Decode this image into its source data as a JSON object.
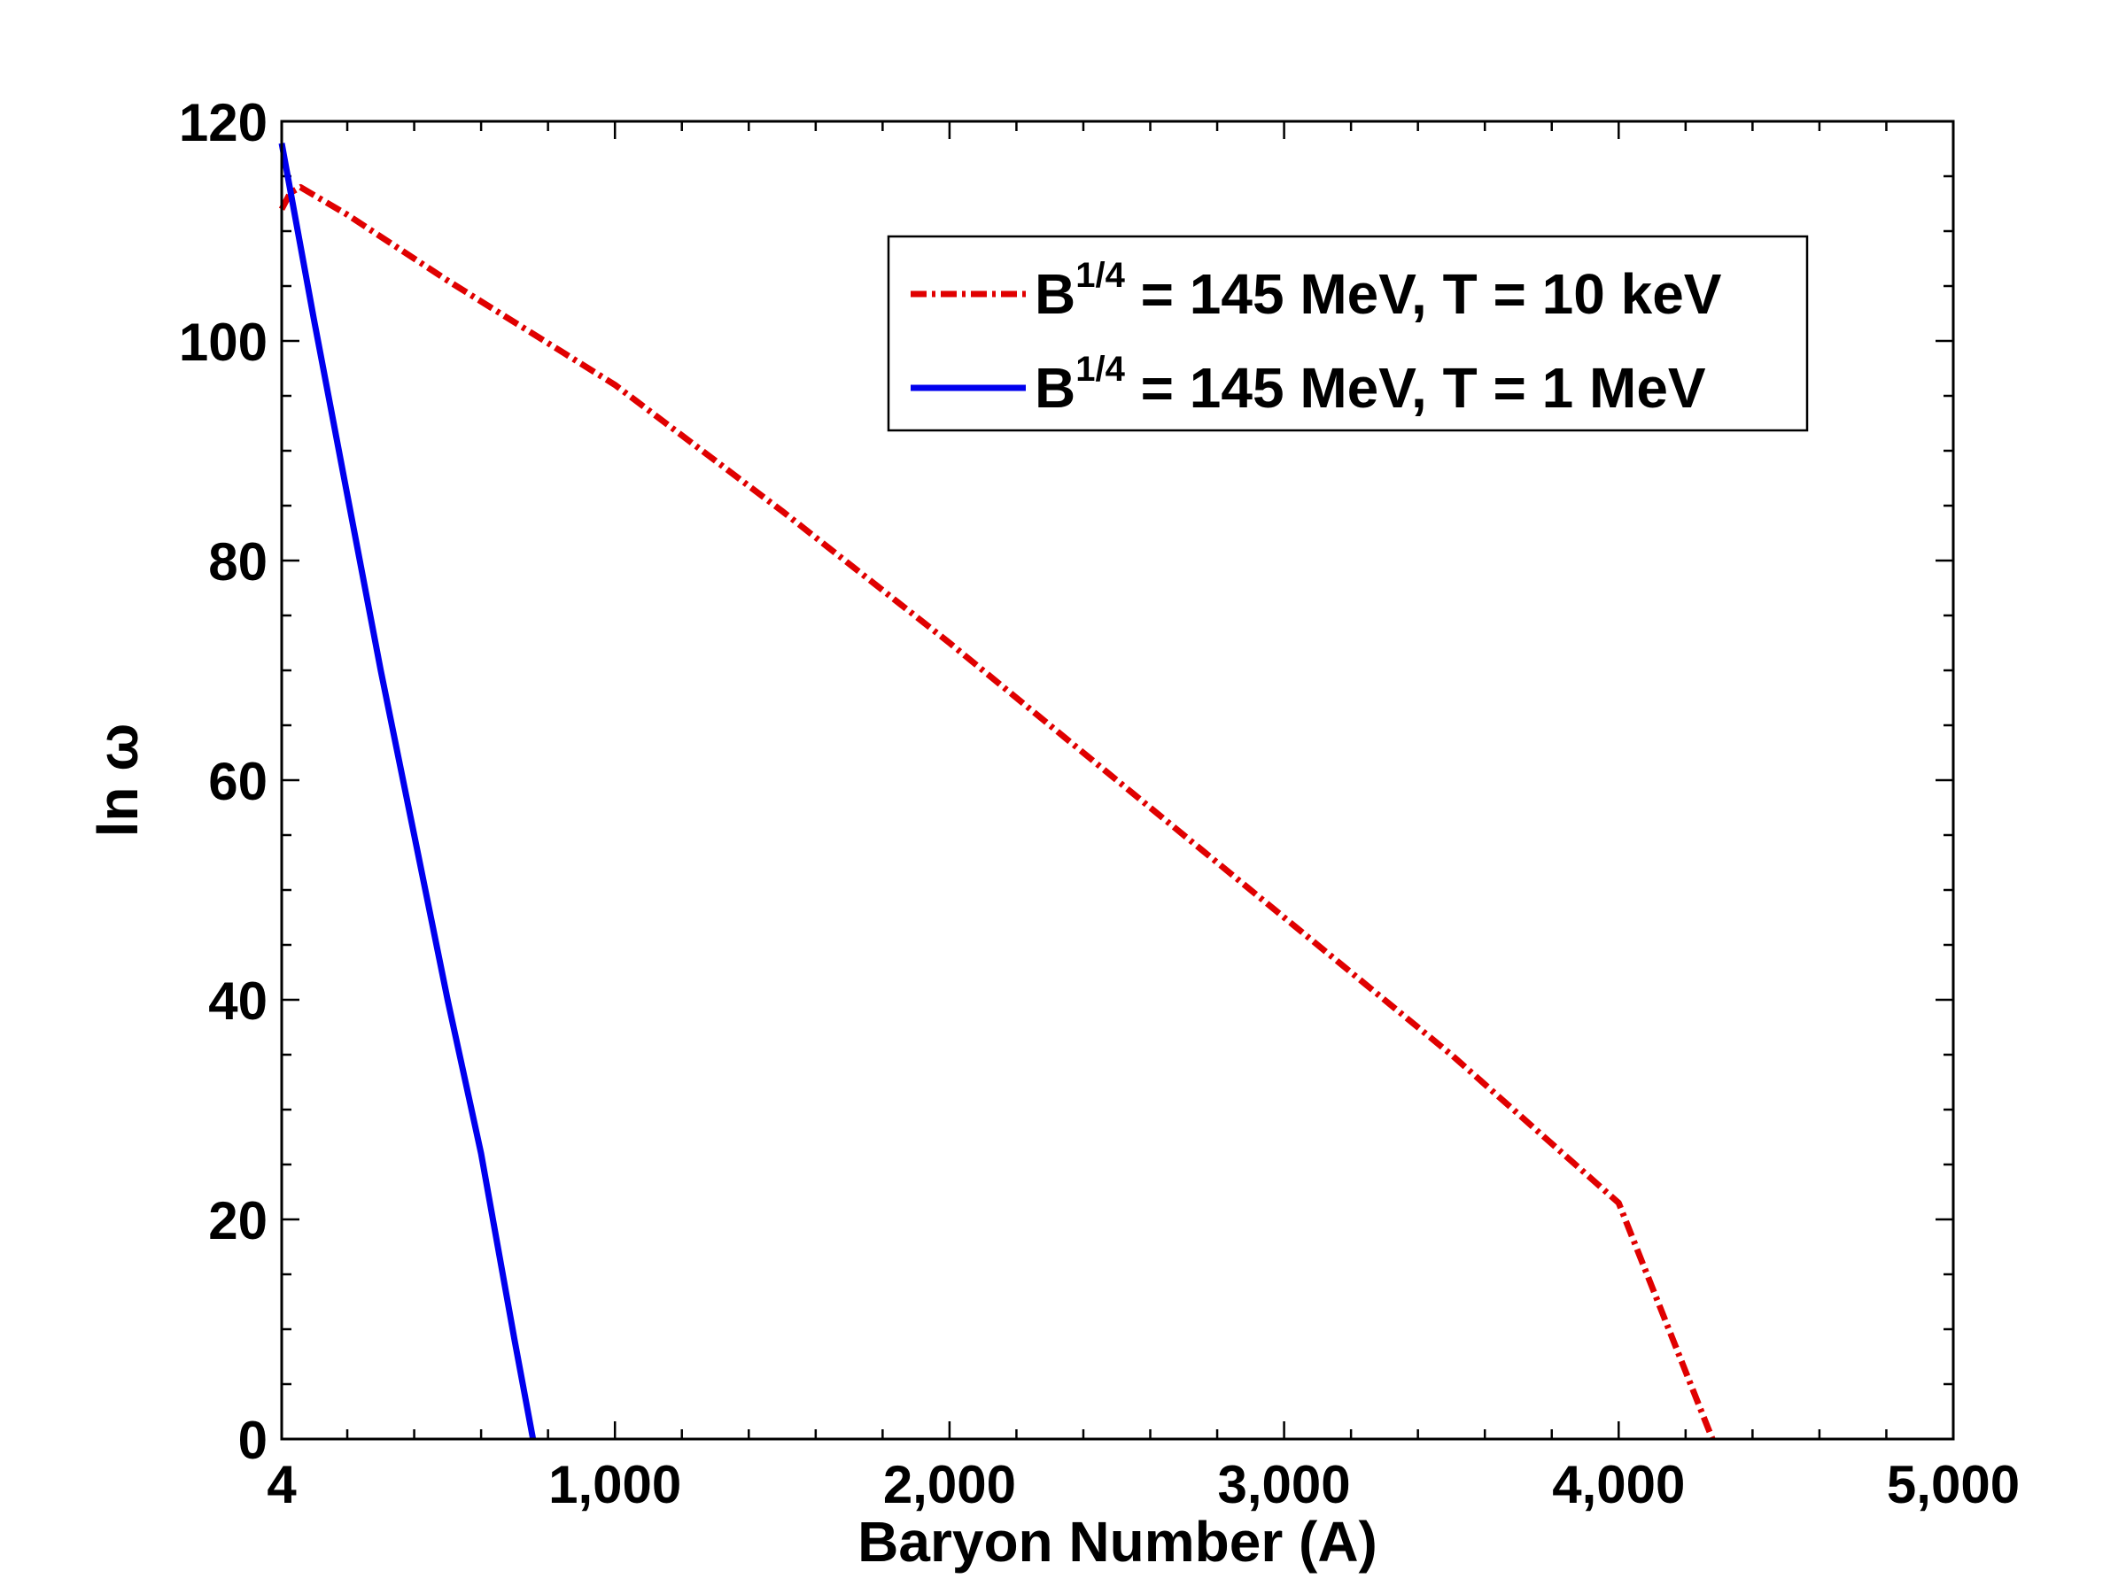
{
  "chart_data": {
    "type": "line",
    "title": "",
    "xlabel": "Baryon Number (A)",
    "ylabel": "ln ω",
    "xlim": [
      4,
      5000
    ],
    "ylim": [
      0,
      120
    ],
    "x_ticks": [
      4,
      1000,
      2000,
      3000,
      4000,
      5000
    ],
    "x_tick_labels": [
      "4",
      "1,000",
      "2,000",
      "3,000",
      "4,000",
      "5,000"
    ],
    "y_ticks": [
      0,
      20,
      40,
      60,
      80,
      100,
      120
    ],
    "y_tick_labels": [
      "0",
      "20",
      "40",
      "60",
      "80",
      "100",
      "120"
    ],
    "grid": false,
    "legend_position": "top-right",
    "series": [
      {
        "name": "B^{1/4} = 145 MeV, T = 10 keV",
        "legend_base": "B",
        "legend_sup": "1/4",
        "legend_rest": " = 145 MeV, T = 10 keV",
        "color": "#e00000",
        "style": "dash-dot",
        "x": [
          4,
          30,
          60,
          200,
          500,
          1000,
          1500,
          2000,
          2500,
          3000,
          3500,
          4000,
          4280
        ],
        "y": [
          112,
          113.5,
          114,
          111.5,
          105.5,
          96,
          84.5,
          72.5,
          60,
          47.5,
          35,
          21.5,
          0
        ]
      },
      {
        "name": "B^{1/4} = 145 MeV, T = 1 MeV",
        "legend_base": "B",
        "legend_sup": "1/4",
        "legend_rest": " = 145 MeV, T = 1 MeV",
        "color": "#0000ee",
        "style": "solid",
        "x": [
          4,
          100,
          200,
          300,
          400,
          500,
          600,
          700,
          755
        ],
        "y": [
          118,
          102,
          86,
          70,
          55,
          40,
          26,
          9,
          0
        ]
      }
    ]
  }
}
